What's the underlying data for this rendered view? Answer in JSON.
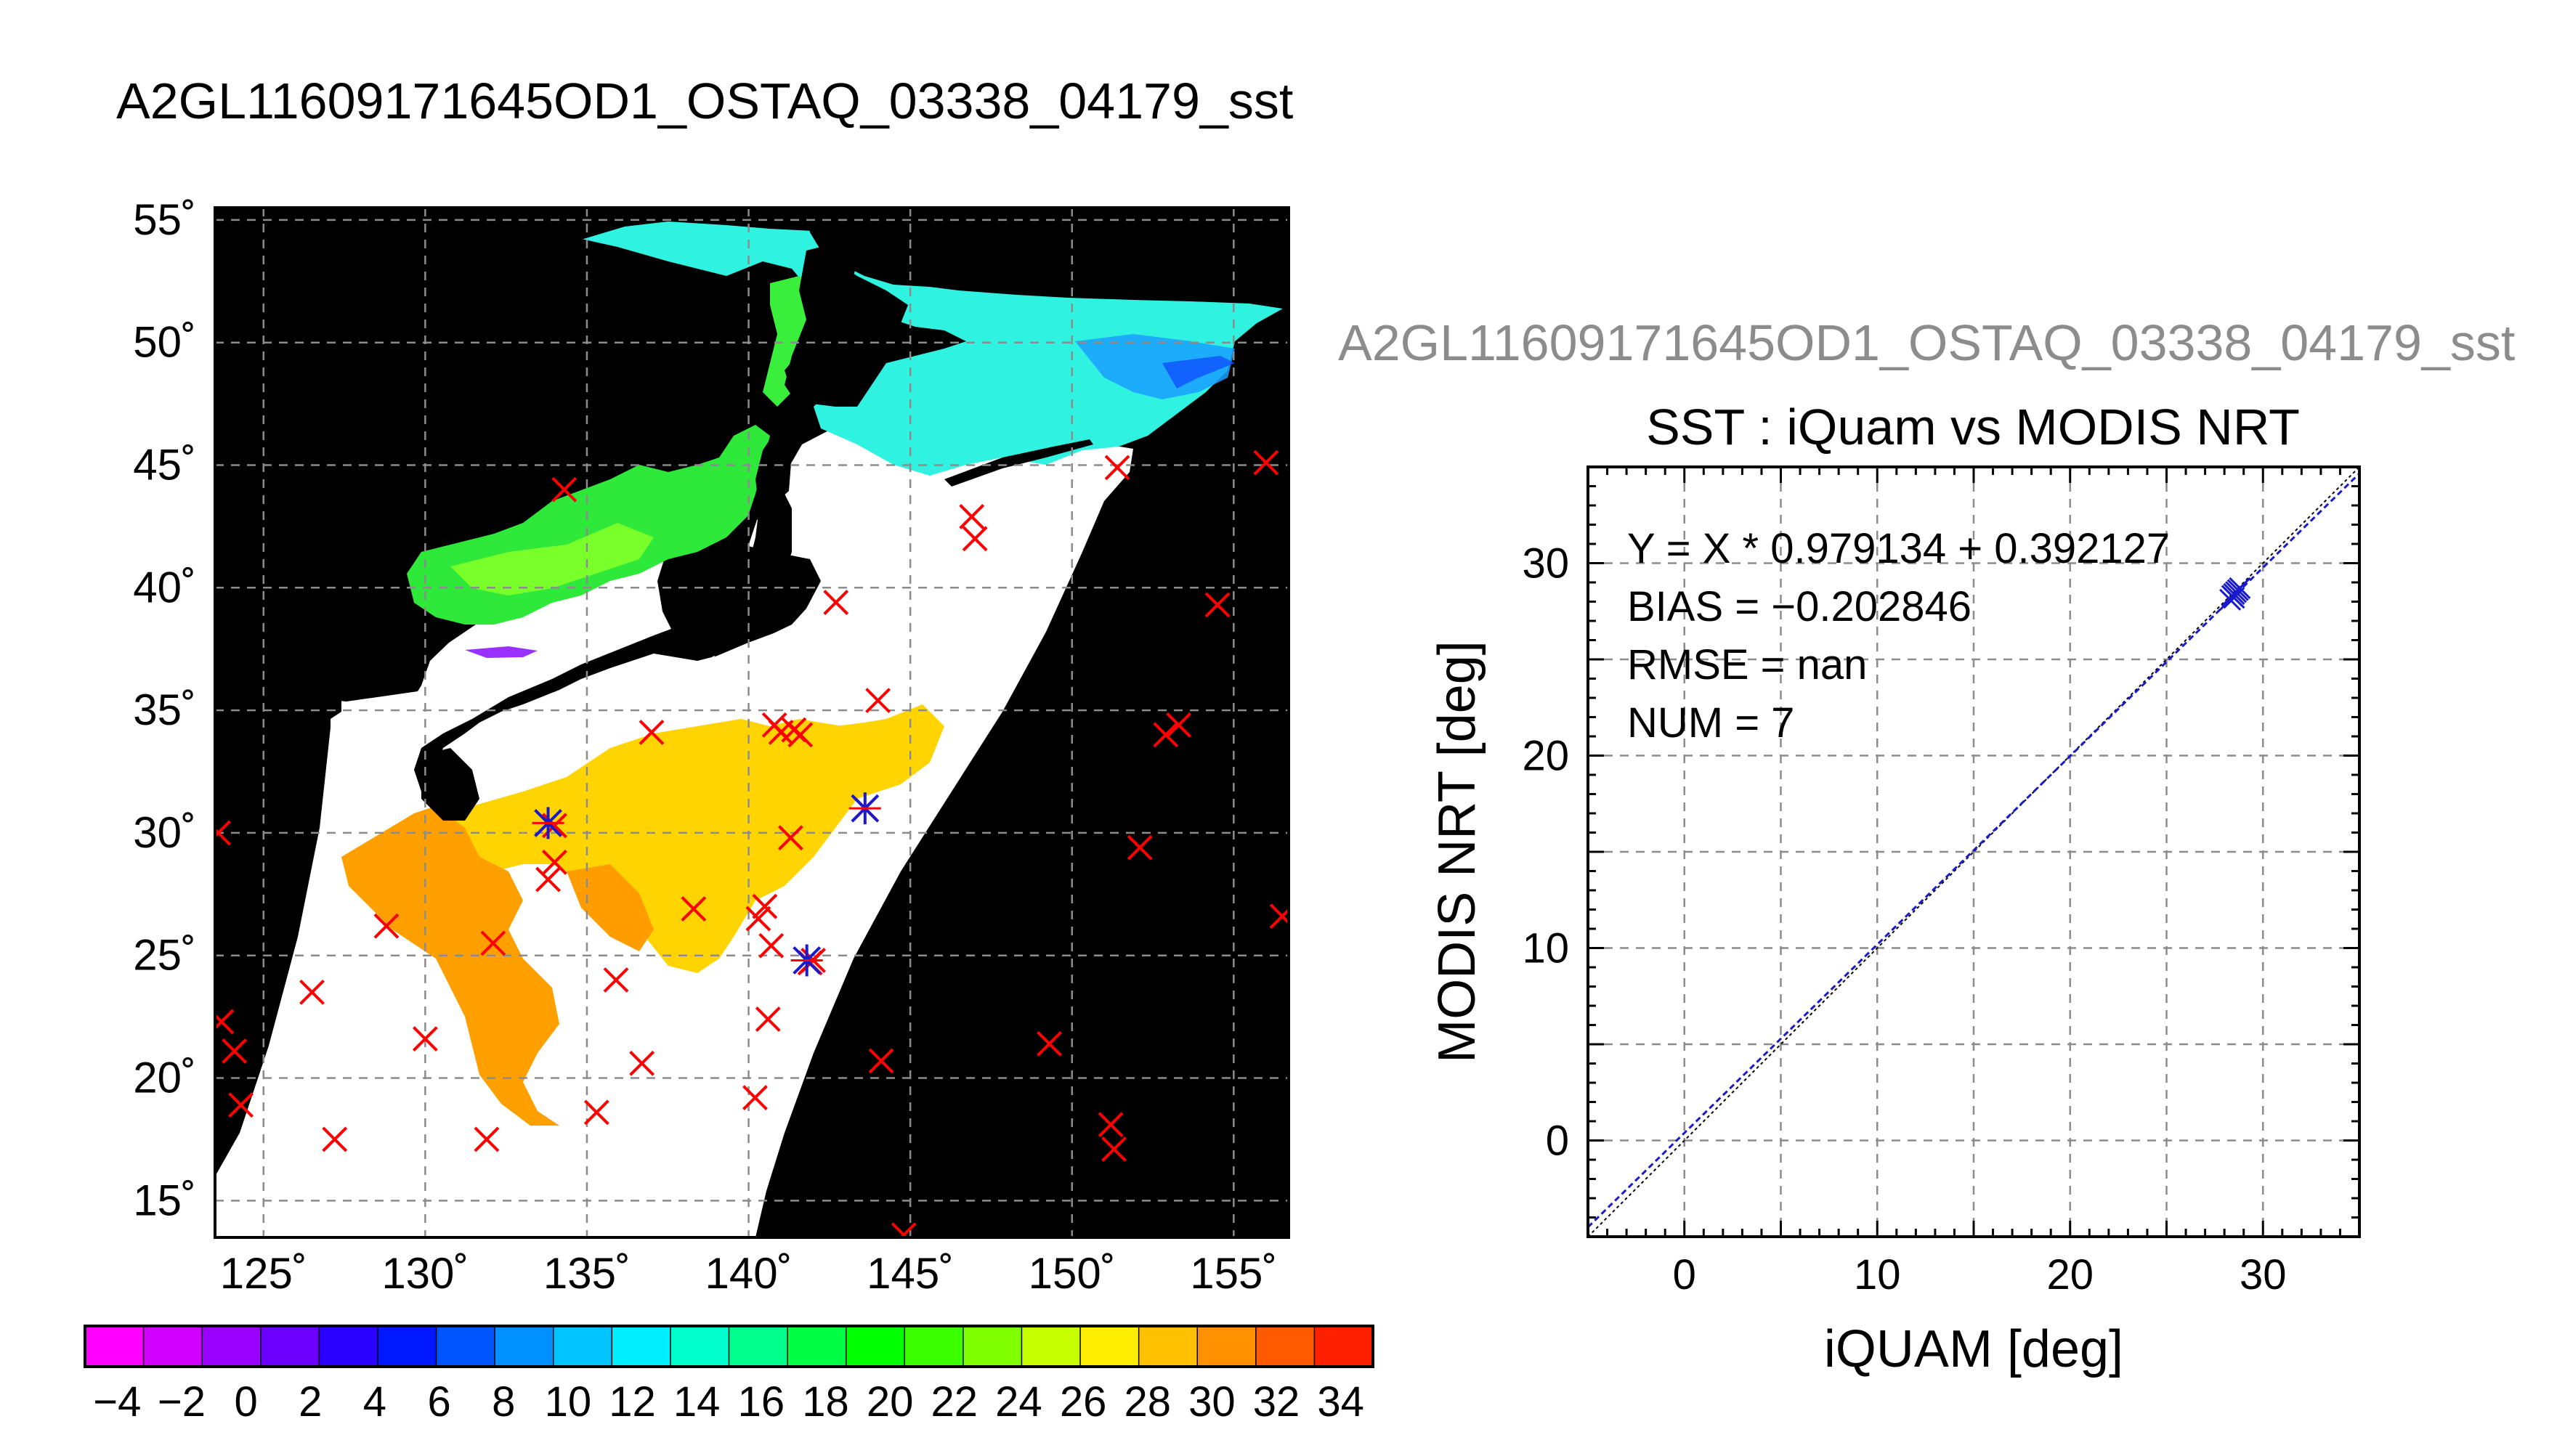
{
  "map_title": "A2GL11609171645OD1_OSTAQ_03338_04179_sst",
  "scatter_header": "A2GL11609171645OD1_OSTAQ_03338_04179_sst",
  "colors": {
    "background": "#ffffff",
    "map_background": "#000000",
    "swath_white": "#ffffff",
    "grid": "#8c8c8c",
    "buoy_marker": "#ff0000",
    "match_marker": "#1a1acd",
    "fit_line": "#000080",
    "header_gray": "#8c8c8c"
  },
  "colorbar": {
    "min": -5,
    "max": 35,
    "step": 2,
    "tick_labels": [
      "−4",
      "−2",
      "0",
      "2",
      "4",
      "6",
      "8",
      "10",
      "12",
      "14",
      "16",
      "18",
      "20",
      "22",
      "24",
      "26",
      "28",
      "30",
      "32",
      "34"
    ],
    "colors": [
      "#ff00ff",
      "#d200ff",
      "#9a00ff",
      "#6c00ff",
      "#2a00ff",
      "#0018ff",
      "#0055ff",
      "#0090ff",
      "#00c3ff",
      "#00eeff",
      "#00ffcc",
      "#00ff8c",
      "#00ff44",
      "#00ff00",
      "#3cff00",
      "#80ff00",
      "#c8ff00",
      "#ffee00",
      "#ffc000",
      "#ff9000",
      "#ff5a00",
      "#ff2000"
    ]
  },
  "map": {
    "lon_range": [
      123.5,
      156.7
    ],
    "lat_range": [
      13.5,
      55.5
    ],
    "lon_ticks": [
      125,
      130,
      135,
      140,
      145,
      150,
      155
    ],
    "lat_ticks": [
      15,
      20,
      25,
      30,
      35,
      40,
      45,
      50,
      55
    ],
    "lon_labels": [
      "125˚",
      "130˚",
      "135˚",
      "140˚",
      "145˚",
      "150˚",
      "155˚"
    ],
    "lat_labels": [
      "15˚",
      "20˚",
      "25˚",
      "30˚",
      "35˚",
      "40˚",
      "45˚",
      "50˚",
      "55˚"
    ]
  },
  "chart_data": [
    {
      "type": "scatter",
      "title": "A2GL11609171645OD1_OSTAQ_03338_04179_sst",
      "description_of_marks": "map of SST with in-situ station markers",
      "series": [
        {
          "x": [
            123.6,
            123.7,
            124.1,
            124.3,
            126.5,
            127.2,
            128.8,
            130.0,
            131.9,
            132.1,
            133.8,
            134.0,
            134.0,
            135.9,
            136.7,
            134.3,
            135.3,
            137.0,
            138.3,
            140.2,
            140.3,
            140.5,
            140.6,
            140.7,
            140.8,
            141.4,
            141.0,
            141.3,
            141.6,
            142.0,
            141.9,
            142.7,
            143.6,
            144.0,
            144.1,
            144.8,
            147.0,
            146.9,
            149.3,
            151.2,
            151.3,
            152.1,
            152.9,
            153.3,
            154.5,
            151.4,
            156.0,
            156.5
          ],
          "y": [
            30.0,
            22.3,
            21.1,
            18.9,
            23.5,
            17.5,
            26.2,
            21.6,
            17.5,
            25.5,
            28.1,
            28.8,
            30.3,
            24.0,
            20.6,
            44.0,
            18.6,
            34.1,
            26.9,
            19.2,
            26.5,
            27.0,
            22.4,
            25.4,
            34.4,
            34.2,
            34.1,
            29.8,
            34.0,
            24.8,
            24.7,
            39.4,
            31.0,
            35.4,
            20.7,
            13.6,
            42.0,
            42.9,
            21.4,
            18.1,
            17.1,
            29.4,
            34.0,
            34.4,
            39.3,
            44.9,
            45.1,
            26.6
          ]
        },
        {
          "x": [
            133.8,
            143.6,
            141.8
          ],
          "y": [
            30.4,
            31.0,
            24.8
          ]
        }
      ]
    },
    {
      "type": "scatter",
      "title": "SST : iQuam vs MODIS NRT",
      "xlabel": "iQUAM [deg]",
      "ylabel": "MODIS NRT [deg]",
      "xlim": [
        -5,
        35
      ],
      "ylim": [
        -5,
        35
      ],
      "x_ticks": [
        0,
        10,
        20,
        30
      ],
      "y_ticks": [
        0,
        10,
        20,
        30
      ],
      "grid": true,
      "series": [
        {
          "x": [
            28.3,
            28.5,
            28.7,
            28.5,
            28.4,
            28.6,
            28.8
          ],
          "y": [
            28.1,
            28.4,
            28.6,
            28.2,
            28.3,
            28.5,
            28.7
          ]
        }
      ],
      "fit": {
        "slope": 0.979134,
        "intercept": 0.392127
      },
      "annotations": [
        "Y = X * 0.979134 + 0.392127",
        "BIAS = −0.202846",
        "RMSE = nan",
        "NUM = 7"
      ]
    }
  ]
}
